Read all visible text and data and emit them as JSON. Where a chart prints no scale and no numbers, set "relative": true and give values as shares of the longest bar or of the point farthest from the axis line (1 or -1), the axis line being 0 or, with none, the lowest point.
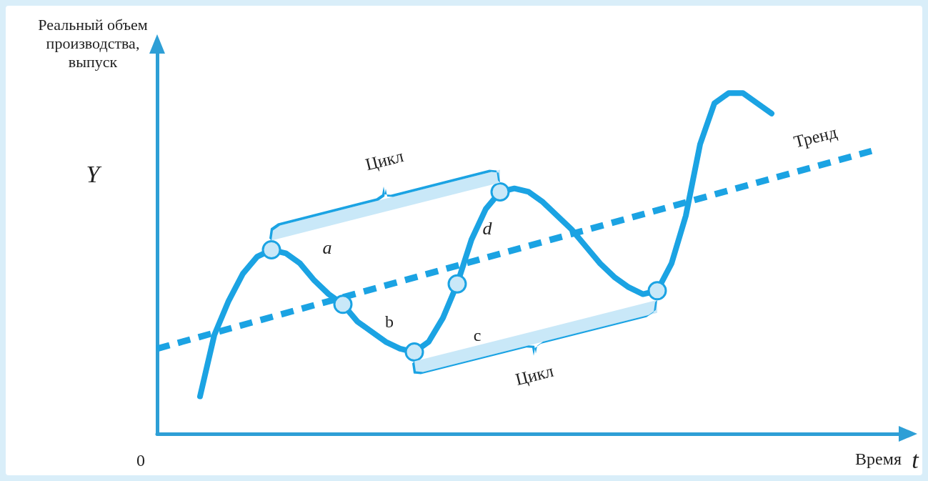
{
  "chart_data": {
    "type": "line",
    "relative": true,
    "xlabel": "Время",
    "ylabel": "Реальный объем производства, выпуск",
    "categories": [
      null,
      null,
      null,
      null,
      null,
      null,
      null,
      null,
      null,
      null,
      null,
      null,
      null,
      null,
      null,
      null,
      null,
      null,
      null,
      null,
      null,
      null,
      null,
      null,
      null,
      null,
      null,
      null,
      null,
      null,
      null,
      null,
      null,
      null,
      null,
      null,
      null,
      null,
      null,
      null,
      null,
      null,
      null,
      null,
      null,
      null,
      null,
      null,
      null,
      null,
      null,
      null,
      null
    ],
    "series": [
      {
        "color": "#1ba3e3",
        "line_style": "solid",
        "values": [
          null,
          null,
          null,
          0.11,
          0.29,
          0.39,
          0.47,
          0.52,
          0.54,
          0.53,
          0.5,
          0.45,
          0.41,
          0.38,
          0.33,
          0.3,
          0.27,
          0.25,
          0.24,
          0.27,
          0.34,
          0.44,
          0.57,
          0.66,
          0.71,
          0.72,
          0.71,
          0.68,
          0.64,
          0.6,
          0.55,
          0.5,
          0.46,
          0.43,
          0.41,
          0.42,
          0.5,
          0.64,
          0.85,
          0.97,
          1.0,
          1.0,
          0.97,
          0.94,
          null,
          null,
          null,
          null,
          null,
          null,
          null,
          null,
          null
        ]
      },
      {
        "name": "Тренд",
        "color": "#1ba3e3",
        "line_style": "dashed",
        "values": [
          0.25,
          null,
          null,
          null,
          null,
          null,
          null,
          null,
          null,
          null,
          null,
          null,
          null,
          null,
          null,
          null,
          null,
          null,
          null,
          null,
          null,
          null,
          null,
          null,
          null,
          null,
          null,
          null,
          null,
          null,
          null,
          null,
          null,
          null,
          null,
          null,
          null,
          null,
          null,
          null,
          null,
          null,
          null,
          null,
          null,
          null,
          null,
          null,
          null,
          null,
          0.83,
          null,
          null
        ]
      }
    ],
    "annotations": [
      "Цикл",
      "Цикл",
      "a",
      "b",
      "c",
      "d",
      "Y",
      "t",
      "0"
    ],
    "grid": false,
    "legend": false
  }
}
